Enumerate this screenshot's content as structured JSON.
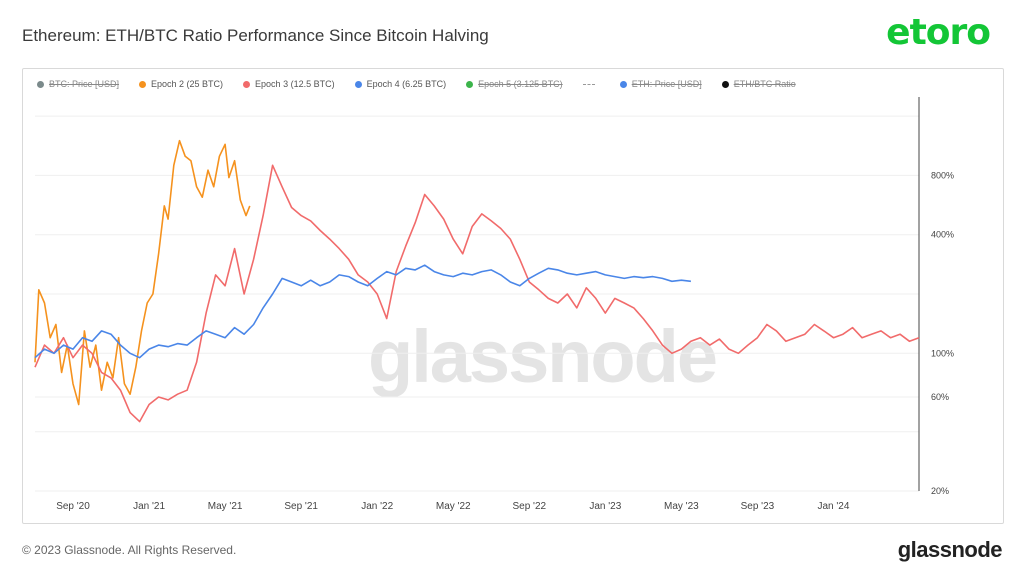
{
  "header": {
    "title": "Ethereum: ETH/BTC Ratio Performance Since Bitcoin Halving",
    "brand": "etoro"
  },
  "footer": {
    "copyright": "© 2023 Glassnode. All Rights Reserved.",
    "brand": "glassnode"
  },
  "watermark": "glassnode",
  "legend": [
    {
      "label": "BTC: Price [USD]",
      "color": "#7b8a8b",
      "enabled": false,
      "marker": "dot"
    },
    {
      "label": "Epoch 2 (25 BTC)",
      "color": "#f5921e",
      "enabled": true,
      "marker": "dot"
    },
    {
      "label": "Epoch 3 (12.5 BTC)",
      "color": "#f16b6b",
      "enabled": true,
      "marker": "dot"
    },
    {
      "label": "Epoch 4 (6.25 BTC)",
      "color": "#4a86e8",
      "enabled": true,
      "marker": "dot"
    },
    {
      "label": "Epoch 5 (3.125 BTC)",
      "color": "#3cb44b",
      "enabled": false,
      "marker": "dot"
    },
    {
      "label": "",
      "color": "#999999",
      "enabled": true,
      "marker": "dash"
    },
    {
      "label": "ETH: Price [USD]",
      "color": "#4a86e8",
      "enabled": false,
      "marker": "dot"
    },
    {
      "label": "ETH/BTC Ratio",
      "color": "#111111",
      "enabled": false,
      "marker": "dot"
    }
  ],
  "chart_data": {
    "type": "line",
    "title": "Ethereum: ETH/BTC Ratio Performance Since Bitcoin Halving",
    "x_axis": {
      "ticks": [
        "Sep '20",
        "Jan '21",
        "May '21",
        "Sep '21",
        "Jan '22",
        "May '22",
        "Sep '22",
        "Jan '23",
        "May '23",
        "Sep '23",
        "Jan '24"
      ],
      "range_months": [
        0,
        46.5
      ],
      "start_month_label": "Jul '20"
    },
    "y_axis": {
      "scale": "log",
      "ticks": [
        20,
        60,
        100,
        400,
        800
      ],
      "tick_labels": [
        "20%",
        "60%",
        "100%",
        "400%",
        "800%"
      ],
      "range": [
        20,
        2000
      ]
    },
    "series": [
      {
        "name": "Epoch 2 (25 BTC)",
        "color": "#f5921e",
        "points": [
          [
            0,
            90
          ],
          [
            0.2,
            210
          ],
          [
            0.5,
            180
          ],
          [
            0.8,
            120
          ],
          [
            1.1,
            140
          ],
          [
            1.4,
            80
          ],
          [
            1.7,
            110
          ],
          [
            2.0,
            70
          ],
          [
            2.3,
            55
          ],
          [
            2.6,
            130
          ],
          [
            2.9,
            85
          ],
          [
            3.2,
            110
          ],
          [
            3.5,
            65
          ],
          [
            3.8,
            90
          ],
          [
            4.1,
            75
          ],
          [
            4.4,
            120
          ],
          [
            4.7,
            70
          ],
          [
            5.0,
            62
          ],
          [
            5.3,
            85
          ],
          [
            5.6,
            130
          ],
          [
            5.9,
            180
          ],
          [
            6.2,
            200
          ],
          [
            6.5,
            320
          ],
          [
            6.8,
            560
          ],
          [
            7.0,
            480
          ],
          [
            7.3,
            900
          ],
          [
            7.6,
            1200
          ],
          [
            7.9,
            1000
          ],
          [
            8.2,
            950
          ],
          [
            8.5,
            700
          ],
          [
            8.8,
            620
          ],
          [
            9.1,
            850
          ],
          [
            9.4,
            700
          ],
          [
            9.7,
            1000
          ],
          [
            10.0,
            1150
          ],
          [
            10.2,
            780
          ],
          [
            10.5,
            950
          ],
          [
            10.8,
            600
          ],
          [
            11.1,
            500
          ],
          [
            11.3,
            560
          ]
        ]
      },
      {
        "name": "Epoch 3 (12.5 BTC)",
        "color": "#f16b6b",
        "points": [
          [
            0,
            85
          ],
          [
            0.5,
            110
          ],
          [
            1.0,
            100
          ],
          [
            1.5,
            120
          ],
          [
            2.0,
            95
          ],
          [
            2.5,
            110
          ],
          [
            3.0,
            100
          ],
          [
            3.5,
            80
          ],
          [
            4.0,
            75
          ],
          [
            4.5,
            65
          ],
          [
            5.0,
            50
          ],
          [
            5.5,
            45
          ],
          [
            6.0,
            55
          ],
          [
            6.5,
            60
          ],
          [
            7.0,
            58
          ],
          [
            7.5,
            62
          ],
          [
            8.0,
            65
          ],
          [
            8.5,
            90
          ],
          [
            9.0,
            160
          ],
          [
            9.5,
            250
          ],
          [
            10.0,
            220
          ],
          [
            10.5,
            340
          ],
          [
            11.0,
            200
          ],
          [
            11.5,
            300
          ],
          [
            12.0,
            500
          ],
          [
            12.5,
            900
          ],
          [
            13.0,
            700
          ],
          [
            13.5,
            550
          ],
          [
            14.0,
            500
          ],
          [
            14.5,
            470
          ],
          [
            15.0,
            420
          ],
          [
            15.5,
            380
          ],
          [
            16.0,
            340
          ],
          [
            16.5,
            300
          ],
          [
            17.0,
            250
          ],
          [
            17.5,
            230
          ],
          [
            18.0,
            200
          ],
          [
            18.5,
            150
          ],
          [
            19.0,
            260
          ],
          [
            19.5,
            350
          ],
          [
            20.0,
            460
          ],
          [
            20.5,
            640
          ],
          [
            21.0,
            560
          ],
          [
            21.5,
            480
          ],
          [
            22.0,
            380
          ],
          [
            22.5,
            320
          ],
          [
            23.0,
            440
          ],
          [
            23.5,
            510
          ],
          [
            24.0,
            470
          ],
          [
            24.5,
            430
          ],
          [
            25.0,
            380
          ],
          [
            25.5,
            300
          ],
          [
            26.0,
            230
          ],
          [
            26.5,
            210
          ],
          [
            27.0,
            190
          ],
          [
            27.5,
            180
          ],
          [
            28.0,
            200
          ],
          [
            28.5,
            170
          ],
          [
            29.0,
            215
          ],
          [
            29.5,
            190
          ],
          [
            30.0,
            160
          ],
          [
            30.5,
            190
          ],
          [
            31.0,
            180
          ],
          [
            31.5,
            170
          ],
          [
            32.0,
            150
          ],
          [
            32.5,
            130
          ],
          [
            33.0,
            110
          ],
          [
            33.5,
            100
          ],
          [
            34.0,
            105
          ],
          [
            34.5,
            115
          ],
          [
            35.0,
            120
          ],
          [
            35.5,
            110
          ],
          [
            36.0,
            118
          ],
          [
            36.5,
            105
          ],
          [
            37.0,
            100
          ],
          [
            37.5,
            110
          ],
          [
            38.0,
            120
          ],
          [
            38.5,
            140
          ],
          [
            39.0,
            130
          ],
          [
            39.5,
            115
          ],
          [
            40.0,
            120
          ],
          [
            40.5,
            125
          ],
          [
            41.0,
            140
          ],
          [
            41.5,
            130
          ],
          [
            42.0,
            120
          ],
          [
            42.5,
            125
          ],
          [
            43.0,
            135
          ],
          [
            43.5,
            120
          ],
          [
            44.0,
            125
          ],
          [
            44.5,
            130
          ],
          [
            45.0,
            120
          ],
          [
            45.5,
            125
          ],
          [
            46.0,
            115
          ],
          [
            46.5,
            120
          ]
        ]
      },
      {
        "name": "Epoch 4 (6.25 BTC)",
        "color": "#4a86e8",
        "points": [
          [
            0,
            95
          ],
          [
            0.5,
            105
          ],
          [
            1.0,
            100
          ],
          [
            1.5,
            110
          ],
          [
            2.0,
            105
          ],
          [
            2.5,
            120
          ],
          [
            3.0,
            115
          ],
          [
            3.5,
            130
          ],
          [
            4.0,
            125
          ],
          [
            4.5,
            110
          ],
          [
            5.0,
            100
          ],
          [
            5.5,
            95
          ],
          [
            6.0,
            105
          ],
          [
            6.5,
            110
          ],
          [
            7.0,
            108
          ],
          [
            7.5,
            112
          ],
          [
            8.0,
            110
          ],
          [
            8.5,
            120
          ],
          [
            9.0,
            130
          ],
          [
            9.5,
            125
          ],
          [
            10.0,
            120
          ],
          [
            10.5,
            135
          ],
          [
            11.0,
            125
          ],
          [
            11.5,
            140
          ],
          [
            12.0,
            170
          ],
          [
            12.5,
            200
          ],
          [
            13.0,
            240
          ],
          [
            13.5,
            230
          ],
          [
            14.0,
            220
          ],
          [
            14.5,
            235
          ],
          [
            15.0,
            220
          ],
          [
            15.5,
            230
          ],
          [
            16.0,
            250
          ],
          [
            16.5,
            245
          ],
          [
            17.0,
            230
          ],
          [
            17.5,
            220
          ],
          [
            18.0,
            240
          ],
          [
            18.5,
            260
          ],
          [
            19.0,
            250
          ],
          [
            19.5,
            270
          ],
          [
            20.0,
            265
          ],
          [
            20.5,
            280
          ],
          [
            21.0,
            260
          ],
          [
            21.5,
            250
          ],
          [
            22.0,
            245
          ],
          [
            22.5,
            255
          ],
          [
            23.0,
            250
          ],
          [
            23.5,
            260
          ],
          [
            24.0,
            265
          ],
          [
            24.5,
            250
          ],
          [
            25.0,
            230
          ],
          [
            25.5,
            220
          ],
          [
            26.0,
            240
          ],
          [
            26.5,
            255
          ],
          [
            27.0,
            270
          ],
          [
            27.5,
            265
          ],
          [
            28.0,
            255
          ],
          [
            28.5,
            250
          ],
          [
            29.0,
            255
          ],
          [
            29.5,
            260
          ],
          [
            30.0,
            250
          ],
          [
            30.5,
            245
          ],
          [
            31.0,
            240
          ],
          [
            31.5,
            245
          ],
          [
            32.0,
            242
          ],
          [
            32.5,
            245
          ],
          [
            33.0,
            240
          ],
          [
            33.5,
            232
          ],
          [
            34.0,
            235
          ],
          [
            34.5,
            232
          ]
        ]
      }
    ],
    "legend_position": "top",
    "grid": true
  }
}
